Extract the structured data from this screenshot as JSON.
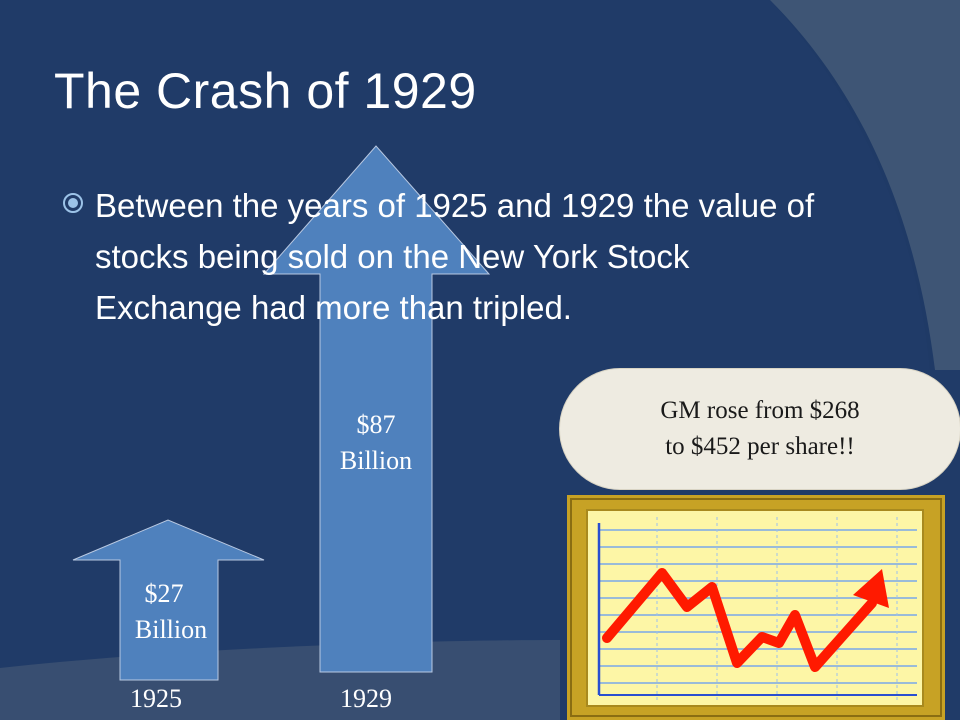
{
  "slide": {
    "title": "The Crash of 1929",
    "bullet": {
      "icon": "circle-bullet-icon",
      "text": "Between the years of 1925 and 1929 the value of stocks being sold on the New York Stock Exchange had more than tripled."
    },
    "arrows": [
      {
        "year": "1925",
        "amount": "$27",
        "unit": "Billion",
        "value_billions": 27
      },
      {
        "year": "1929",
        "amount": "$87",
        "unit": "Billion",
        "value_billions": 87
      }
    ],
    "callout": {
      "line1": "GM rose from $268",
      "line2": "to $452 per share!!"
    },
    "clipart": {
      "icon": "rising-stock-chart-icon"
    }
  },
  "colors": {
    "background": "#203b68",
    "arrow_fill": "#4f81bd",
    "callout_fill": "#eeebe1",
    "chart_frame": "#c7a225",
    "chart_line": "#ff1a00"
  }
}
